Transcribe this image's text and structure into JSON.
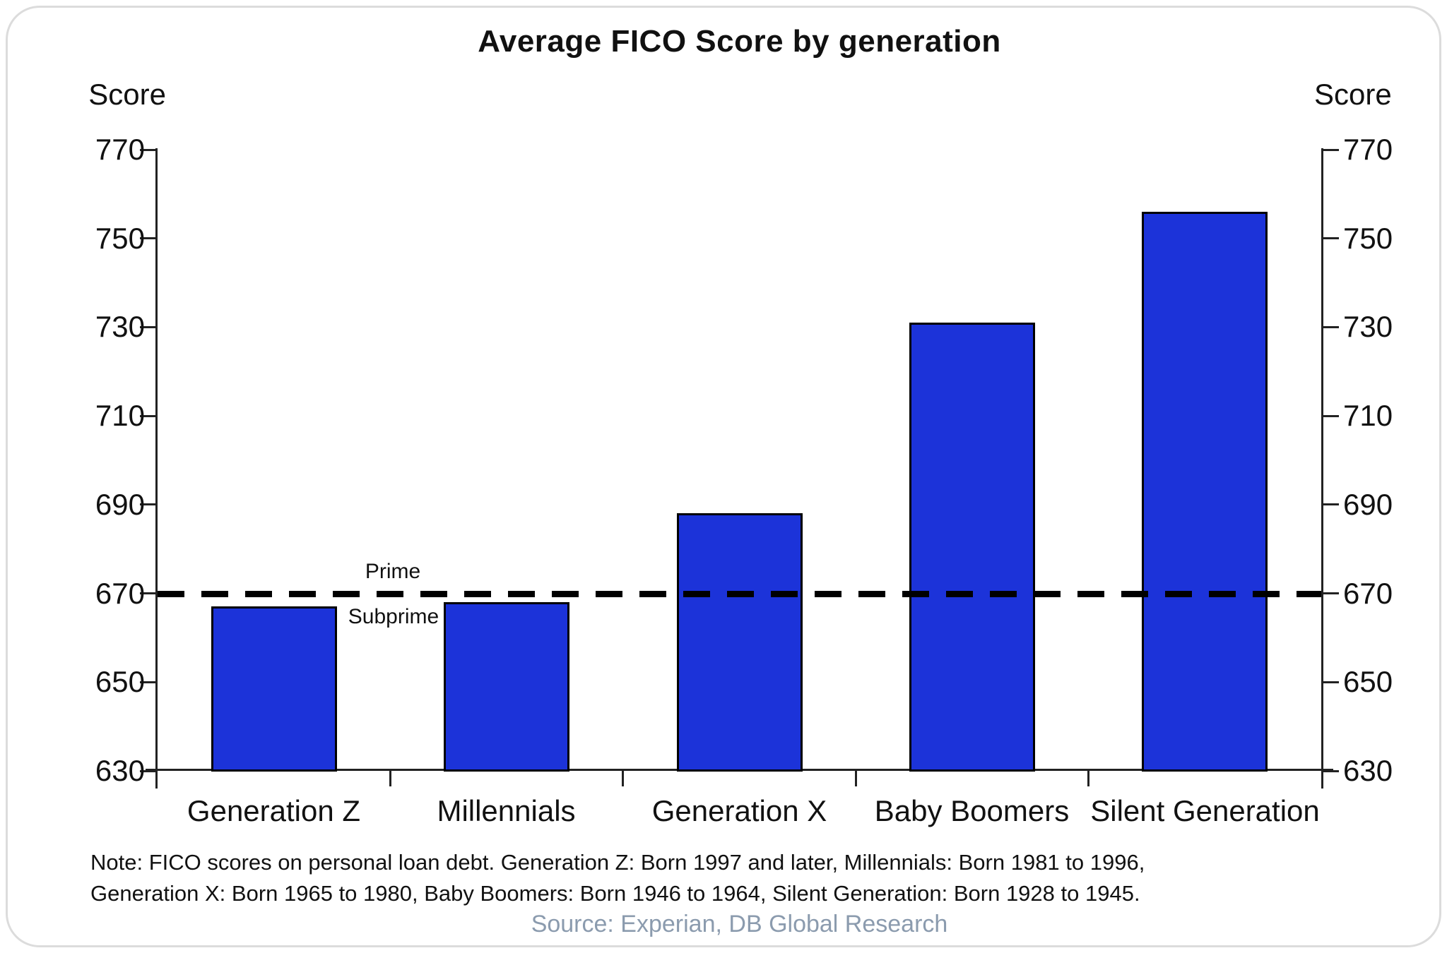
{
  "chart_data": {
    "type": "bar",
    "title": "Average FICO Score by generation",
    "ylabel": "Score",
    "xlabel": "",
    "categories": [
      "Generation Z",
      "Millennials",
      "Generation X",
      "Baby Boomers",
      "Silent Generation"
    ],
    "values": [
      667,
      668,
      688,
      731,
      756
    ],
    "ylim": [
      630,
      770
    ],
    "y_ticks": [
      630,
      650,
      670,
      690,
      710,
      730,
      750,
      770
    ],
    "grid": false,
    "legend_position": "none",
    "reference_line": {
      "value": 670,
      "label_above": "Prime",
      "label_below": "Subprime",
      "style": "dashed"
    }
  },
  "note": {
    "line1": "Note: FICO scores on personal loan debt. Generation Z: Born 1997 and later, Millennials: Born 1981 to 1996,",
    "line2": "Generation X: Born 1965 to 1980, Baby Boomers: Born 1946 to 1964, Silent Generation: Born 1928 to 1945."
  },
  "source": "Source: Experian, DB Global Research",
  "colors": {
    "bar_fill": "#1c33d9",
    "bar_border": "#000000",
    "axis": "#222222",
    "threshold_line": "#000000",
    "source_text": "#8b9bae",
    "text": "#111111"
  }
}
